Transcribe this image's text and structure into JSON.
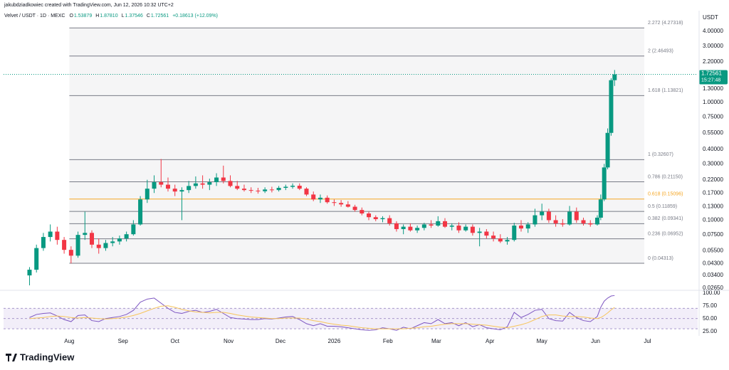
{
  "header": {
    "author": "jakubdziadkowiec created with TradingView.com, Jun 12, 2026 10:32 UTC+2",
    "symbol": "Velvet / USDT · 1D · MEXC",
    "ohlc": [
      {
        "label": "O",
        "value": "1.53879"
      },
      {
        "label": "H",
        "value": "1.87810"
      },
      {
        "label": "L",
        "value": "1.37546"
      },
      {
        "label": "C",
        "value": "1.72561"
      }
    ],
    "change": "+0.18613 (+12.09%)"
  },
  "chart_data": [
    {
      "type": "candlestick",
      "currency": "USDT",
      "log_scale": true,
      "up_color": "#089981",
      "down_color": "#f23645",
      "x": [
        -23,
        -19,
        -15,
        -11,
        -7,
        -3,
        1,
        5,
        9,
        13,
        17,
        21,
        25,
        29,
        33,
        37,
        41,
        45,
        49,
        53,
        57,
        61,
        65,
        69,
        73,
        77,
        81,
        85,
        89,
        93,
        97,
        101,
        105,
        109,
        113,
        117,
        121,
        125,
        129,
        133,
        137,
        141,
        145,
        149,
        153,
        157,
        161,
        165,
        169,
        173,
        177,
        181,
        185,
        189,
        193,
        197,
        201,
        205,
        209,
        213,
        217,
        221,
        225,
        229,
        233,
        237,
        241,
        245,
        249,
        253,
        257,
        261,
        265,
        269,
        273,
        277,
        281,
        285,
        289,
        293,
        297,
        301,
        305,
        307,
        309,
        311,
        313,
        315
      ],
      "open": [
        0.034,
        0.038,
        0.058,
        0.072,
        0.08,
        0.068,
        0.056,
        0.05,
        0.075,
        0.078,
        0.062,
        0.058,
        0.064,
        0.066,
        0.07,
        0.076,
        0.092,
        0.15,
        0.185,
        0.21,
        0.2,
        0.185,
        0.175,
        0.18,
        0.195,
        0.205,
        0.2,
        0.21,
        0.23,
        0.215,
        0.195,
        0.185,
        0.18,
        0.178,
        0.176,
        0.182,
        0.18,
        0.188,
        0.192,
        0.196,
        0.185,
        0.165,
        0.15,
        0.155,
        0.142,
        0.14,
        0.136,
        0.13,
        0.122,
        0.114,
        0.106,
        0.102,
        0.104,
        0.094,
        0.084,
        0.088,
        0.082,
        0.086,
        0.092,
        0.09,
        0.098,
        0.088,
        0.09,
        0.082,
        0.088,
        0.078,
        0.08,
        0.074,
        0.07,
        0.066,
        0.068,
        0.09,
        0.085,
        0.092,
        0.11,
        0.118,
        0.1,
        0.094,
        0.092,
        0.118,
        0.1,
        0.094,
        0.092,
        0.105,
        0.15,
        0.28,
        0.55,
        1.53879
      ],
      "high": [
        0.04,
        0.062,
        0.078,
        0.092,
        0.088,
        0.072,
        0.06,
        0.08,
        0.118,
        0.082,
        0.07,
        0.068,
        0.072,
        0.074,
        0.08,
        0.1,
        0.16,
        0.22,
        0.24,
        0.33,
        0.23,
        0.2,
        0.19,
        0.215,
        0.235,
        0.24,
        0.225,
        0.25,
        0.29,
        0.24,
        0.215,
        0.2,
        0.19,
        0.188,
        0.19,
        0.192,
        0.195,
        0.2,
        0.205,
        0.205,
        0.19,
        0.175,
        0.165,
        0.162,
        0.15,
        0.148,
        0.145,
        0.135,
        0.128,
        0.118,
        0.11,
        0.108,
        0.11,
        0.098,
        0.092,
        0.094,
        0.09,
        0.095,
        0.1,
        0.108,
        0.104,
        0.094,
        0.096,
        0.092,
        0.092,
        0.086,
        0.084,
        0.08,
        0.076,
        0.072,
        0.095,
        0.1,
        0.096,
        0.125,
        0.138,
        0.125,
        0.11,
        0.102,
        0.132,
        0.128,
        0.105,
        0.1,
        0.11,
        0.165,
        0.3,
        0.6,
        1.6,
        1.8781
      ],
      "low": [
        0.028,
        0.036,
        0.055,
        0.066,
        0.062,
        0.052,
        0.043,
        0.048,
        0.068,
        0.058,
        0.052,
        0.055,
        0.06,
        0.062,
        0.066,
        0.074,
        0.09,
        0.14,
        0.17,
        0.19,
        0.175,
        0.16,
        0.1,
        0.17,
        0.185,
        0.185,
        0.18,
        0.195,
        0.205,
        0.19,
        0.18,
        0.175,
        0.17,
        0.168,
        0.17,
        0.172,
        0.175,
        0.18,
        0.185,
        0.18,
        0.16,
        0.145,
        0.14,
        0.138,
        0.132,
        0.13,
        0.128,
        0.118,
        0.11,
        0.1,
        0.098,
        0.096,
        0.09,
        0.08,
        0.076,
        0.08,
        0.078,
        0.082,
        0.086,
        0.088,
        0.086,
        0.082,
        0.078,
        0.08,
        0.074,
        0.06,
        0.07,
        0.066,
        0.064,
        0.062,
        0.066,
        0.08,
        0.078,
        0.088,
        0.1,
        0.095,
        0.088,
        0.088,
        0.09,
        0.095,
        0.09,
        0.088,
        0.09,
        0.1,
        0.145,
        0.27,
        0.52,
        1.37546
      ],
      "close": [
        0.038,
        0.058,
        0.072,
        0.08,
        0.068,
        0.056,
        0.05,
        0.075,
        0.078,
        0.062,
        0.058,
        0.064,
        0.066,
        0.07,
        0.076,
        0.092,
        0.15,
        0.185,
        0.21,
        0.2,
        0.185,
        0.175,
        0.18,
        0.195,
        0.205,
        0.2,
        0.21,
        0.23,
        0.215,
        0.195,
        0.185,
        0.18,
        0.178,
        0.176,
        0.182,
        0.18,
        0.188,
        0.192,
        0.196,
        0.185,
        0.165,
        0.15,
        0.155,
        0.142,
        0.14,
        0.136,
        0.13,
        0.122,
        0.114,
        0.106,
        0.102,
        0.104,
        0.094,
        0.084,
        0.088,
        0.082,
        0.086,
        0.092,
        0.09,
        0.098,
        0.088,
        0.09,
        0.082,
        0.088,
        0.078,
        0.08,
        0.074,
        0.07,
        0.066,
        0.068,
        0.09,
        0.085,
        0.092,
        0.11,
        0.118,
        0.1,
        0.094,
        0.092,
        0.118,
        0.1,
        0.094,
        0.092,
        0.105,
        0.15,
        0.28,
        0.55,
        1.53948,
        1.72561
      ],
      "last_price_time": "15:27:48",
      "xlim": [
        -38,
        363
      ],
      "ylim": [
        0.0265,
        5.58
      ],
      "yticks": [
        {
          "value": 4,
          "label": "4.00000"
        },
        {
          "value": 3,
          "label": "3.00000"
        },
        {
          "value": 2.2,
          "label": "2.20000"
        },
        {
          "value": 1.3,
          "label": "1.30000"
        },
        {
          "value": 1,
          "label": "1.00000"
        },
        {
          "value": 0.75,
          "label": "0.75000"
        },
        {
          "value": 0.55,
          "label": "0.55000"
        },
        {
          "value": 0.4,
          "label": "0.40000"
        },
        {
          "value": 0.3,
          "label": "0.30000"
        },
        {
          "value": 0.22,
          "label": "0.22000"
        },
        {
          "value": 0.17,
          "label": "0.17000"
        },
        {
          "value": 0.13,
          "label": "0.13000"
        },
        {
          "value": 0.1,
          "label": "0.10000"
        },
        {
          "value": 0.075,
          "label": "0.07500"
        },
        {
          "value": 0.055,
          "label": "0.05500"
        },
        {
          "value": 0.043,
          "label": "0.04300"
        },
        {
          "value": 0.034,
          "label": "0.03400"
        },
        {
          "value": 0.0265,
          "label": "0.02650"
        }
      ],
      "fib_levels": [
        {
          "label": "2.272 (4.27318)",
          "value": 4.27318,
          "color": "#787b86"
        },
        {
          "label": "2 (2.46493)",
          "value": 2.46493,
          "color": "#787b86"
        },
        {
          "label": "1.618 (1.13821)",
          "value": 1.13821,
          "color": "#787b86"
        },
        {
          "label": "1 (0.32607)",
          "value": 0.32607,
          "color": "#787b86"
        },
        {
          "label": "0.786 (0.21150)",
          "value": 0.2115,
          "color": "#787b86"
        },
        {
          "label": "0.618 (0.15096)",
          "value": 0.15096,
          "color": "#f5a623"
        },
        {
          "label": "0.5 (0.11859)",
          "value": 0.11859,
          "color": "#787b86"
        },
        {
          "label": "0.382 (0.09341)",
          "value": 0.09341,
          "color": "#787b86"
        },
        {
          "label": "0.236 (0.06952)",
          "value": 0.06952,
          "color": "#787b86"
        },
        {
          "label": "0 (0.04313)",
          "value": 0.04313,
          "color": "#787b86"
        }
      ]
    },
    {
      "type": "line",
      "x": [
        -23,
        -19,
        -15,
        -11,
        -7,
        -3,
        1,
        5,
        9,
        13,
        17,
        21,
        25,
        29,
        33,
        37,
        41,
        45,
        49,
        53,
        57,
        61,
        65,
        69,
        73,
        77,
        81,
        85,
        89,
        93,
        97,
        101,
        105,
        109,
        113,
        117,
        121,
        125,
        129,
        133,
        137,
        141,
        145,
        149,
        153,
        157,
        161,
        165,
        169,
        173,
        177,
        181,
        185,
        189,
        193,
        197,
        201,
        205,
        209,
        213,
        217,
        221,
        225,
        229,
        233,
        237,
        241,
        245,
        249,
        253,
        257,
        261,
        265,
        269,
        273,
        277,
        281,
        285,
        289,
        293,
        297,
        301,
        305,
        307,
        309,
        311,
        313,
        315
      ],
      "series": [
        {
          "color": "#7e57c2",
          "values": [
            52,
            58,
            60,
            61,
            55,
            48,
            44,
            56,
            57,
            46,
            44,
            50,
            52,
            54,
            58,
            66,
            82,
            88,
            90,
            80,
            70,
            62,
            60,
            64,
            66,
            62,
            64,
            68,
            60,
            52,
            50,
            49,
            48,
            48,
            50,
            49,
            51,
            53,
            54,
            48,
            40,
            36,
            40,
            35,
            35,
            34,
            32,
            30,
            28,
            27,
            28,
            32,
            30,
            27,
            33,
            30,
            36,
            42,
            40,
            48,
            40,
            42,
            36,
            42,
            34,
            38,
            32,
            30,
            28,
            34,
            62,
            52,
            58,
            66,
            68,
            50,
            46,
            45,
            62,
            52,
            46,
            44,
            54,
            72,
            84,
            90,
            94,
            95
          ]
        },
        {
          "color": "#f7c55a",
          "values": [
            50,
            51,
            52,
            54,
            55,
            54,
            52,
            51,
            52,
            51,
            50,
            49,
            50,
            51,
            53,
            56,
            60,
            65,
            70,
            74,
            75,
            72,
            68,
            65,
            63,
            62,
            61,
            62,
            62,
            60,
            57,
            55,
            53,
            52,
            51,
            50,
            50,
            51,
            51,
            51,
            49,
            46,
            44,
            41,
            39,
            37,
            36,
            34,
            32,
            31,
            30,
            30,
            30,
            30,
            30,
            31,
            32,
            34,
            35,
            37,
            39,
            40,
            40,
            40,
            39,
            38,
            37,
            35,
            33,
            32,
            35,
            38,
            42,
            48,
            54,
            57,
            57,
            55,
            54,
            54,
            53,
            51,
            50,
            52,
            56,
            61,
            67,
            72
          ]
        }
      ],
      "levels": [
        70,
        50,
        30
      ],
      "xlim": [
        -38,
        363
      ],
      "ylim": [
        19,
        101
      ],
      "yticks": [
        {
          "value": 100,
          "label": "100.00"
        },
        {
          "value": 75,
          "label": "75.00"
        },
        {
          "value": 50,
          "label": "50.00"
        },
        {
          "value": 25,
          "label": "25.00"
        }
      ],
      "xticks": [
        {
          "value": 0,
          "label": "Aug"
        },
        {
          "value": 31,
          "label": "Sep"
        },
        {
          "value": 61,
          "label": "Oct"
        },
        {
          "value": 92,
          "label": "Nov"
        },
        {
          "value": 122,
          "label": "Dec"
        },
        {
          "value": 153,
          "label": "2026"
        },
        {
          "value": 184,
          "label": "Feb"
        },
        {
          "value": 212,
          "label": "Mar"
        },
        {
          "value": 243,
          "label": "Apr"
        },
        {
          "value": 273,
          "label": "May"
        },
        {
          "value": 304,
          "label": "Jun"
        },
        {
          "value": 334,
          "label": "Jul"
        }
      ]
    }
  ],
  "footer": {
    "logo": "TradingView"
  }
}
